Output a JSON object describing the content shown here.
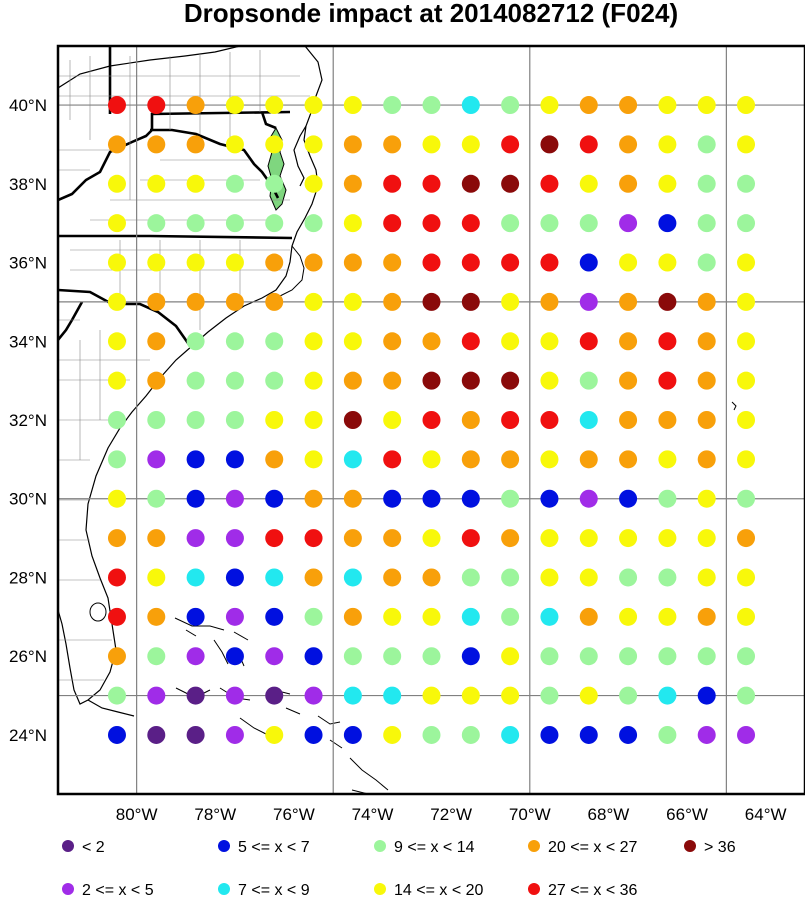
{
  "title": "Dropsonde impact at 2014082712 (F024)",
  "map": {
    "lon_range": [
      -82,
      -63
    ],
    "lat_range": [
      22.5,
      41.5
    ],
    "lon_ticks": [
      {
        "value": -80,
        "label": "80°W"
      },
      {
        "value": -78,
        "label": "78°W"
      },
      {
        "value": -76,
        "label": "76°W"
      },
      {
        "value": -74,
        "label": "74°W"
      },
      {
        "value": -72,
        "label": "72°W"
      },
      {
        "value": -70,
        "label": "70°W"
      },
      {
        "value": -68,
        "label": "68°W"
      },
      {
        "value": -66,
        "label": "66°W"
      },
      {
        "value": -64,
        "label": "64°W"
      }
    ],
    "lat_ticks": [
      {
        "value": 24,
        "label": "24°N"
      },
      {
        "value": 26,
        "label": "26°N"
      },
      {
        "value": 28,
        "label": "28°N"
      },
      {
        "value": 30,
        "label": "30°N"
      },
      {
        "value": 32,
        "label": "32°N"
      },
      {
        "value": 34,
        "label": "34°N"
      },
      {
        "value": 36,
        "label": "36°N"
      },
      {
        "value": 38,
        "label": "38°N"
      },
      {
        "value": 40,
        "label": "40°N"
      }
    ],
    "grid_lons": [
      -80,
      -75,
      -70,
      -65
    ],
    "grid_lats": [
      25,
      30,
      35,
      40
    ],
    "colors": {
      "land_outline": "#000000",
      "grid": "#808080",
      "bay_fill": "#7fd67f"
    }
  },
  "legend": [
    {
      "key": "c0",
      "label": "<  2",
      "color": "#5a1f87"
    },
    {
      "key": "c1",
      "label": "2 <= x <  5",
      "color": "#a02ce8"
    },
    {
      "key": "c2",
      "label": "5 <= x <  7",
      "color": "#0010e0"
    },
    {
      "key": "c3",
      "label": "7 <= x <  9",
      "color": "#22e8ef"
    },
    {
      "key": "c4",
      "label": "9 <= x < 14",
      "color": "#9cf59c"
    },
    {
      "key": "c5",
      "label": "14 <= x < 20",
      "color": "#f8f80a"
    },
    {
      "key": "c6",
      "label": "20 <= x < 27",
      "color": "#f8a00a"
    },
    {
      "key": "c7",
      "label": "27 <= x < 36",
      "color": "#f01010"
    },
    {
      "key": "c8",
      "label": "> 36",
      "color": "#8a0a0a"
    }
  ],
  "chart_data": {
    "type": "scatter",
    "lons": [
      -80.5,
      -79.5,
      -78.5,
      -77.5,
      -76.5,
      -75.5,
      -74.5,
      -73.5,
      -72.5,
      -71.5,
      -70.5,
      -69.5,
      -68.5,
      -67.5,
      -66.5,
      -65.5,
      -64.5
    ],
    "lats": [
      40,
      39,
      38,
      37,
      36,
      35,
      34,
      33,
      32,
      31,
      30,
      29,
      28,
      27,
      26,
      25,
      24
    ],
    "rows": [
      "77655554434566555",
      "66655566557876545",
      "55544567788756544",
      "54444457774441244",
      "55556666777725545",
      "56666556885616865",
      "56444556675576765",
      "56444566888546765",
      "44445585767736665",
      "41226537566566565",
      "54212662224212454",
      "66117766576555556",
      "75323636644554455",
      "76212465534365565",
      "64121244425444444",
      "41010133555454324",
      "20015225443222411"
    ]
  }
}
